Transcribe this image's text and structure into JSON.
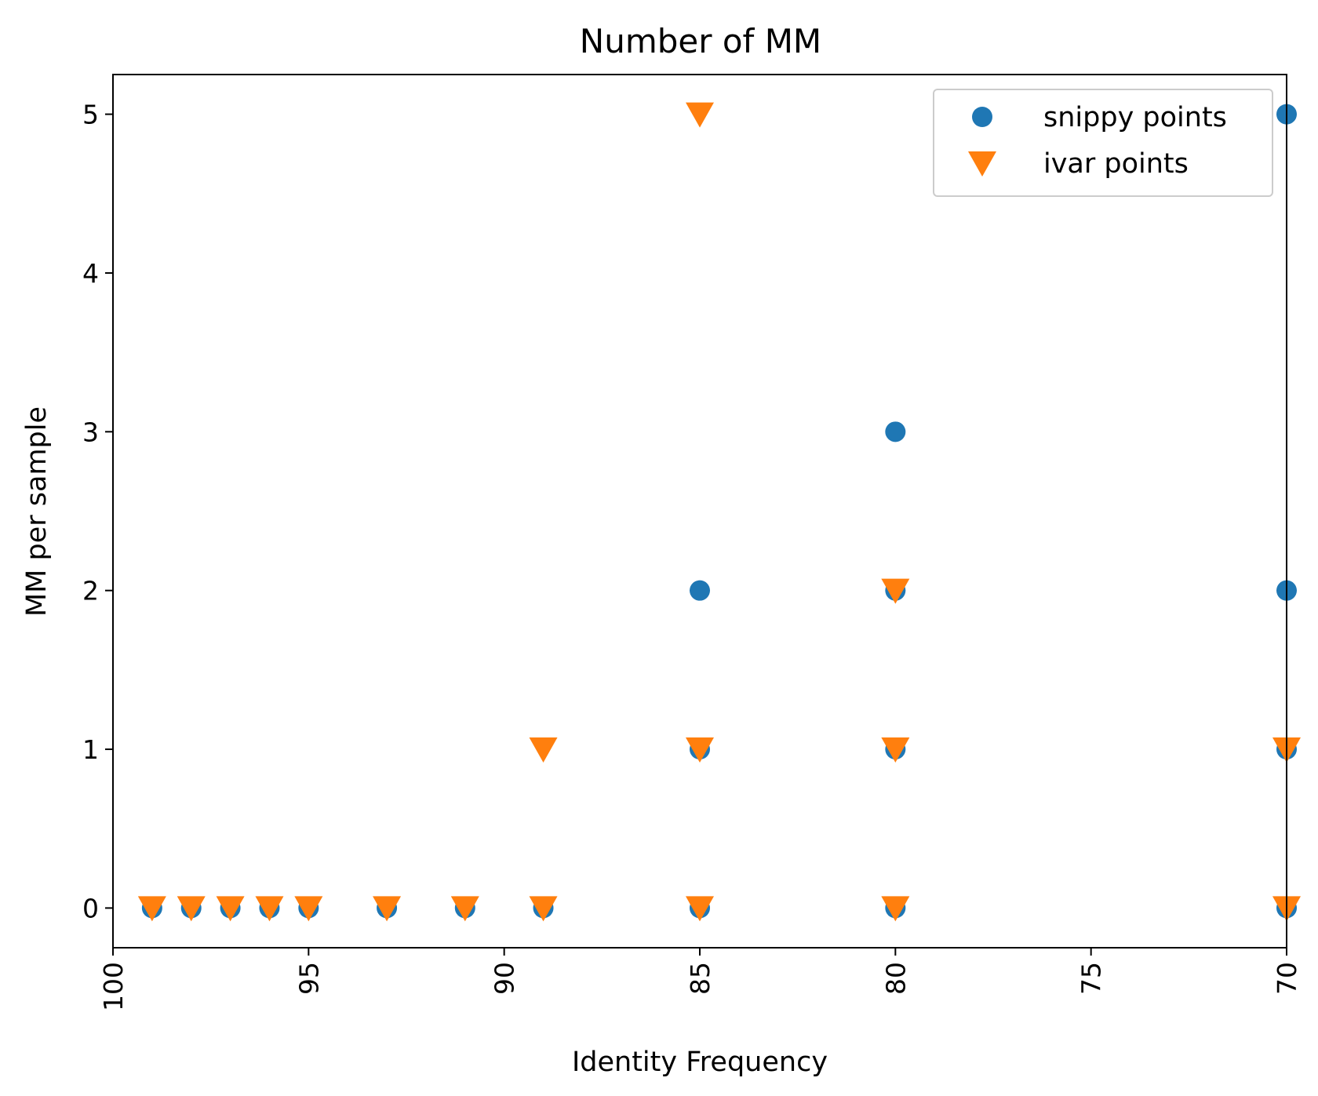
{
  "chart_data": {
    "type": "scatter",
    "title": "Number of MM",
    "xlabel": "Identity Frequency",
    "ylabel": "MM per sample",
    "xlim": [
      100,
      70
    ],
    "ylim": [
      -0.25,
      5.25
    ],
    "x_inverted": true,
    "x_ticks": [
      100,
      95,
      90,
      85,
      80,
      75,
      70
    ],
    "y_ticks": [
      0,
      1,
      2,
      3,
      4,
      5
    ],
    "x_tick_rotation": "vertical",
    "grid": false,
    "legend_position": "upper right",
    "series": [
      {
        "name": "snippy points",
        "marker": "circle",
        "color": "#1f77b4",
        "points": [
          [
            99,
            0
          ],
          [
            98,
            0
          ],
          [
            97,
            0
          ],
          [
            96,
            0
          ],
          [
            95,
            0
          ],
          [
            93,
            0
          ],
          [
            91,
            0
          ],
          [
            89,
            0
          ],
          [
            85,
            0
          ],
          [
            85,
            1
          ],
          [
            85,
            2
          ],
          [
            80,
            0
          ],
          [
            80,
            1
          ],
          [
            80,
            2
          ],
          [
            80,
            3
          ],
          [
            70,
            0
          ],
          [
            70,
            1
          ],
          [
            70,
            2
          ],
          [
            70,
            5
          ]
        ]
      },
      {
        "name": "ivar points",
        "marker": "triangle-down",
        "color": "#ff7f0e",
        "points": [
          [
            99,
            0
          ],
          [
            98,
            0
          ],
          [
            97,
            0
          ],
          [
            96,
            0
          ],
          [
            95,
            0
          ],
          [
            93,
            0
          ],
          [
            91,
            0
          ],
          [
            89,
            0
          ],
          [
            89,
            1
          ],
          [
            85,
            0
          ],
          [
            85,
            1
          ],
          [
            85,
            5
          ],
          [
            80,
            0
          ],
          [
            80,
            1
          ],
          [
            80,
            2
          ],
          [
            70,
            0
          ],
          [
            70,
            1
          ]
        ]
      }
    ]
  }
}
